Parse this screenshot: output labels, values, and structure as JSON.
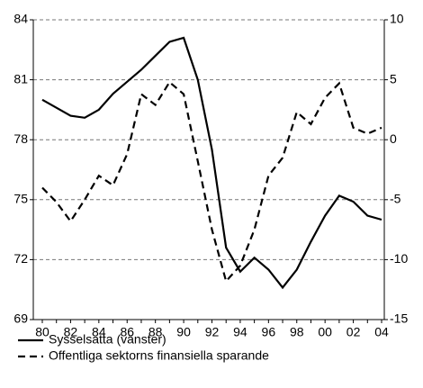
{
  "chart_data": {
    "type": "line",
    "categories": [
      "80",
      null,
      "82",
      null,
      "84",
      null,
      "86",
      null,
      "88",
      null,
      "90",
      null,
      "92",
      null,
      "94",
      null,
      "96",
      null,
      "98",
      null,
      "00",
      null,
      "02",
      null,
      "04"
    ],
    "series": [
      {
        "name": "Sysselsatta (vänster)",
        "color": "#000000",
        "dash": false,
        "axis": "y",
        "values": [
          80.0,
          79.6,
          79.2,
          79.1,
          79.5,
          80.3,
          80.9,
          81.5,
          82.2,
          82.9,
          83.1,
          81.0,
          77.5,
          72.6,
          71.4,
          72.1,
          71.5,
          70.6,
          71.5,
          72.9,
          74.2,
          75.2,
          74.9,
          74.2,
          74.0
        ]
      },
      {
        "name": "Offentliga sektorns finansiella sparande",
        "color": "#000000",
        "dash": true,
        "axis": "y2",
        "values": [
          -4.0,
          -5.2,
          -6.8,
          -5.0,
          -3.0,
          -3.8,
          -1.2,
          3.8,
          2.9,
          4.8,
          3.8,
          -1.8,
          -7.5,
          -11.8,
          -10.5,
          -7.5,
          -3.0,
          -1.5,
          2.3,
          1.3,
          3.5,
          4.7,
          1.0,
          0.5,
          1.0
        ]
      }
    ],
    "ylim": [
      69,
      84
    ],
    "yticks": [
      69,
      72,
      75,
      78,
      81,
      84
    ],
    "y2lim": [
      -15,
      10
    ],
    "y2ticks": [
      -15,
      -10,
      -5,
      0,
      5,
      10
    ],
    "grid": true
  }
}
